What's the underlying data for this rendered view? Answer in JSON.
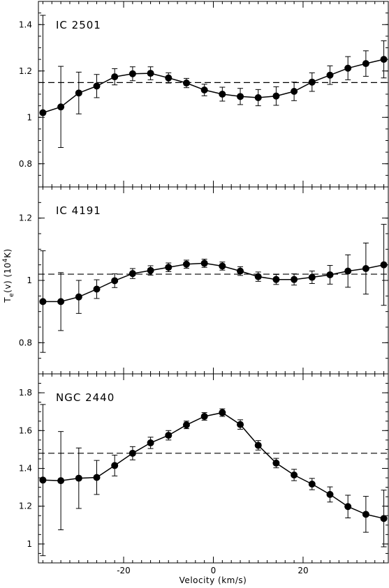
{
  "chart_data": {
    "type": "line",
    "layout": "three vertically stacked panels sharing the velocity axis",
    "xlabel": "Velocity (km/s)",
    "ylabel": "T_e(v) (10^4K)",
    "ylabel_parts": {
      "main": "T",
      "sub": "e",
      "mid": "(v) (10",
      "sup": "4",
      "end": "K)"
    },
    "xlim": [
      -39,
      39
    ],
    "xticks": [
      -20,
      0,
      20
    ],
    "grid": false,
    "markers": "filled circles joined by solid line, with vertical error bars",
    "reference_line": "dashed horizontal line at mean temperature",
    "panels": [
      {
        "name": "IC 2501",
        "ylim": [
          0.7,
          1.5
        ],
        "yticks": [
          0.8,
          1,
          1.2,
          1.4
        ],
        "ytick_labels": [
          "0.8",
          "1",
          "1.2",
          "1.4"
        ],
        "mean": 1.15,
        "x": [
          -38,
          -34,
          -30,
          -26,
          -22,
          -18,
          -14,
          -10,
          -6,
          -2,
          2,
          6,
          10,
          14,
          18,
          22,
          26,
          30,
          34,
          38
        ],
        "y": [
          1.02,
          1.045,
          1.105,
          1.135,
          1.175,
          1.188,
          1.19,
          1.17,
          1.148,
          1.118,
          1.1,
          1.09,
          1.085,
          1.092,
          1.112,
          1.152,
          1.182,
          1.212,
          1.232,
          1.25
        ],
        "err": [
          0.42,
          0.175,
          0.09,
          0.05,
          0.035,
          0.03,
          0.028,
          0.022,
          0.02,
          0.025,
          0.03,
          0.035,
          0.035,
          0.04,
          0.04,
          0.04,
          0.04,
          0.05,
          0.055,
          0.08
        ]
      },
      {
        "name": "IC 4191",
        "ylim": [
          0.7,
          1.3
        ],
        "yticks": [
          0.8,
          1,
          1.2
        ],
        "ytick_labels": [
          "0.8",
          "1",
          "1.2"
        ],
        "mean": 1.02,
        "x": [
          -38,
          -34,
          -30,
          -26,
          -22,
          -18,
          -14,
          -10,
          -6,
          -2,
          2,
          6,
          10,
          14,
          18,
          22,
          26,
          30,
          34,
          38
        ],
        "y": [
          0.932,
          0.932,
          0.947,
          0.972,
          0.999,
          1.022,
          1.032,
          1.042,
          1.052,
          1.055,
          1.046,
          1.03,
          1.012,
          1.003,
          1.003,
          1.01,
          1.018,
          1.03,
          1.038,
          1.05
        ],
        "err": [
          0.163,
          0.093,
          0.053,
          0.03,
          0.022,
          0.016,
          0.015,
          0.014,
          0.013,
          0.013,
          0.013,
          0.014,
          0.015,
          0.016,
          0.018,
          0.02,
          0.03,
          0.052,
          0.082,
          0.13
        ]
      },
      {
        "name": "NGC 2440",
        "ylim": [
          0.9,
          1.9
        ],
        "yticks": [
          1,
          1.2,
          1.4,
          1.6,
          1.8
        ],
        "ytick_labels": [
          "1",
          "1.2",
          "1.4",
          "1.6",
          "1.8"
        ],
        "mean": 1.48,
        "x": [
          -38,
          -34,
          -30,
          -26,
          -22,
          -18,
          -14,
          -10,
          -6,
          -2,
          2,
          6,
          10,
          14,
          18,
          22,
          26,
          30,
          34,
          38
        ],
        "y": [
          1.338,
          1.335,
          1.348,
          1.352,
          1.415,
          1.48,
          1.535,
          1.575,
          1.63,
          1.675,
          1.695,
          1.632,
          1.522,
          1.428,
          1.365,
          1.317,
          1.262,
          1.198,
          1.157,
          1.135
        ],
        "err": [
          0.4,
          0.26,
          0.16,
          0.09,
          0.055,
          0.035,
          0.03,
          0.025,
          0.02,
          0.02,
          0.02,
          0.025,
          0.025,
          0.025,
          0.03,
          0.03,
          0.04,
          0.06,
          0.095,
          0.15
        ]
      }
    ]
  }
}
